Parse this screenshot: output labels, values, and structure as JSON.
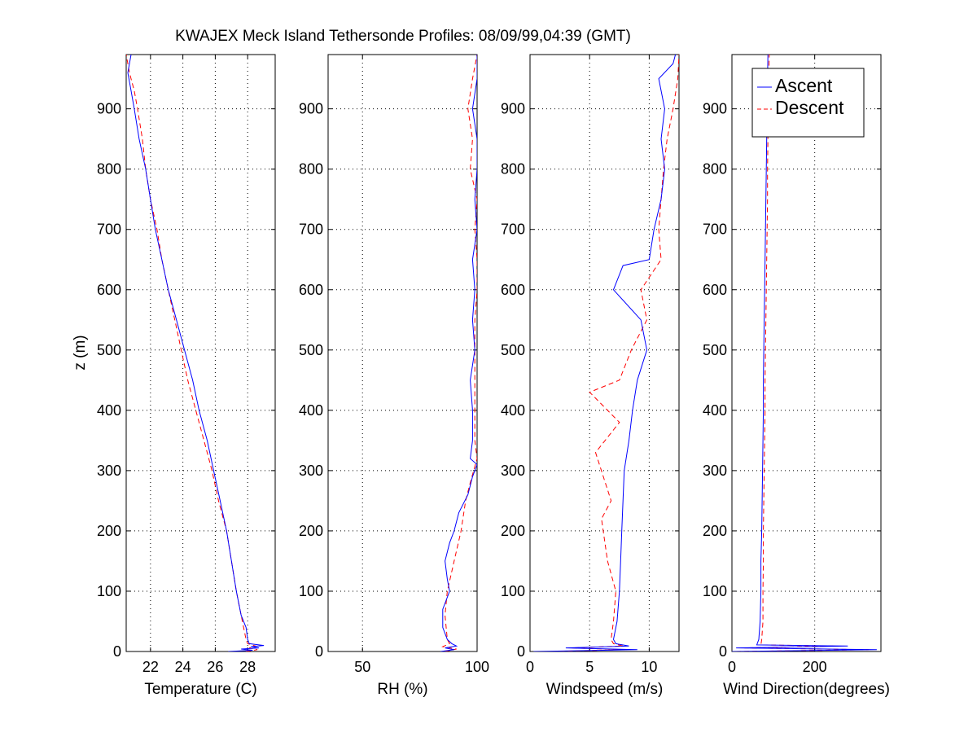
{
  "chart_data": {
    "type": "line",
    "title": "KWAJEX Meck Island Tethersonde Profiles: 08/09/99,04:39 (GMT)",
    "ylabel": "z (m)",
    "ylim": [
      0,
      990
    ],
    "yticks": [
      0,
      100,
      200,
      300,
      400,
      500,
      600,
      700,
      800,
      900
    ],
    "grid": true,
    "legend": {
      "placement": "top-right of last panel",
      "entries": [
        {
          "name": "Ascent",
          "color": "#0000ff",
          "style": "solid"
        },
        {
          "name": "Descent",
          "color": "#ff0000",
          "style": "dashed"
        }
      ]
    },
    "panels": [
      {
        "xlabel": "Temperature (C)",
        "xlim": [
          20.5,
          29.7
        ],
        "xticks": [
          22,
          24,
          26,
          28
        ],
        "series": [
          {
            "name": "Ascent",
            "color": "#0000ff",
            "style": "solid",
            "points": [
              [
                26.8,
                0
              ],
              [
                28.3,
                2
              ],
              [
                27.6,
                4
              ],
              [
                28.7,
                6
              ],
              [
                28.2,
                8
              ],
              [
                29.0,
                10
              ],
              [
                28.1,
                13
              ],
              [
                28.0,
                20
              ],
              [
                27.9,
                40
              ],
              [
                27.6,
                60
              ],
              [
                27.3,
                100
              ],
              [
                27.0,
                150
              ],
              [
                26.7,
                200
              ],
              [
                26.3,
                250
              ],
              [
                25.9,
                300
              ],
              [
                25.5,
                350
              ],
              [
                25.0,
                400
              ],
              [
                24.6,
                450
              ],
              [
                24.1,
                500
              ],
              [
                23.6,
                550
              ],
              [
                23.1,
                600
              ],
              [
                22.7,
                650
              ],
              [
                22.3,
                700
              ],
              [
                22.0,
                750
              ],
              [
                21.7,
                800
              ],
              [
                21.3,
                850
              ],
              [
                21.0,
                900
              ],
              [
                20.8,
                930
              ],
              [
                20.6,
                960
              ],
              [
                20.8,
                990
              ]
            ]
          },
          {
            "name": "Descent",
            "color": "#ff0000",
            "style": "dashed",
            "points": [
              [
                27.9,
                0
              ],
              [
                28.6,
                3
              ],
              [
                28.1,
                6
              ],
              [
                28.5,
                9
              ],
              [
                28.0,
                13
              ],
              [
                27.9,
                20
              ],
              [
                27.6,
                60
              ],
              [
                27.3,
                100
              ],
              [
                27.0,
                150
              ],
              [
                26.7,
                200
              ],
              [
                26.2,
                250
              ],
              [
                25.8,
                300
              ],
              [
                25.3,
                350
              ],
              [
                24.8,
                400
              ],
              [
                24.3,
                450
              ],
              [
                23.9,
                500
              ],
              [
                23.5,
                550
              ],
              [
                23.1,
                600
              ],
              [
                22.7,
                650
              ],
              [
                22.4,
                700
              ],
              [
                22.0,
                750
              ],
              [
                21.7,
                800
              ],
              [
                21.5,
                850
              ],
              [
                21.2,
                900
              ],
              [
                21.0,
                930
              ],
              [
                20.7,
                960
              ],
              [
                20.5,
                990
              ]
            ]
          }
        ]
      },
      {
        "xlabel": "RH (%)",
        "xlim": [
          35,
          100
        ],
        "xticks": [
          50,
          100
        ],
        "series": [
          {
            "name": "Ascent",
            "color": "#0000ff",
            "style": "solid",
            "points": [
              [
                84,
                0
              ],
              [
                90,
                3
              ],
              [
                86,
                6
              ],
              [
                91,
                9
              ],
              [
                89,
                13
              ],
              [
                87,
                20
              ],
              [
                85,
                40
              ],
              [
                85,
                70
              ],
              [
                88,
                100
              ],
              [
                87,
                120
              ],
              [
                86,
                150
              ],
              [
                88,
                180
              ],
              [
                90,
                200
              ],
              [
                92,
                230
              ],
              [
                96,
                260
              ],
              [
                98,
                290
              ],
              [
                100,
                310
              ],
              [
                97,
                320
              ],
              [
                98,
                350
              ],
              [
                98,
                400
              ],
              [
                97,
                450
              ],
              [
                99,
                500
              ],
              [
                98,
                550
              ],
              [
                99,
                600
              ],
              [
                98,
                650
              ],
              [
                100,
                700
              ],
              [
                99,
                750
              ],
              [
                100,
                800
              ],
              [
                100,
                850
              ],
              [
                98,
                900
              ],
              [
                100,
                950
              ],
              [
                100,
                990
              ]
            ]
          },
          {
            "name": "Descent",
            "color": "#ff0000",
            "style": "dashed",
            "points": [
              [
                86,
                0
              ],
              [
                91,
                4
              ],
              [
                85,
                8
              ],
              [
                88,
                13
              ],
              [
                87,
                20
              ],
              [
                86,
                60
              ],
              [
                87,
                100
              ],
              [
                90,
                150
              ],
              [
                93,
                200
              ],
              [
                95,
                250
              ],
              [
                97,
                280
              ],
              [
                100,
                320
              ],
              [
                99,
                350
              ],
              [
                99,
                400
              ],
              [
                99,
                450
              ],
              [
                99,
                500
              ],
              [
                99,
                550
              ],
              [
                100,
                600
              ],
              [
                100,
                650
              ],
              [
                99,
                700
              ],
              [
                100,
                750
              ],
              [
                97,
                800
              ],
              [
                98,
                850
              ],
              [
                96,
                900
              ],
              [
                98,
                950
              ],
              [
                100,
                990
              ]
            ]
          }
        ]
      },
      {
        "xlabel": "Windspeed (m/s)",
        "xlim": [
          0,
          12.5
        ],
        "xticks": [
          0,
          5,
          10
        ],
        "series": [
          {
            "name": "Ascent",
            "color": "#0000ff",
            "style": "solid",
            "points": [
              [
                0.3,
                0
              ],
              [
                9.0,
                3
              ],
              [
                3.0,
                6
              ],
              [
                8.3,
                9
              ],
              [
                7.2,
                13
              ],
              [
                7.0,
                20
              ],
              [
                7.3,
                50
              ],
              [
                7.5,
                100
              ],
              [
                7.6,
                150
              ],
              [
                7.7,
                200
              ],
              [
                7.8,
                250
              ],
              [
                7.9,
                300
              ],
              [
                8.3,
                350
              ],
              [
                8.6,
                400
              ],
              [
                9.0,
                450
              ],
              [
                9.8,
                500
              ],
              [
                9.3,
                550
              ],
              [
                7.0,
                600
              ],
              [
                7.8,
                640
              ],
              [
                10.0,
                650
              ],
              [
                10.4,
                700
              ],
              [
                11.0,
                750
              ],
              [
                11.3,
                800
              ],
              [
                11.0,
                850
              ],
              [
                11.3,
                900
              ],
              [
                10.8,
                950
              ],
              [
                12.0,
                975
              ],
              [
                12.2,
                990
              ]
            ]
          },
          {
            "name": "Descent",
            "color": "#ff0000",
            "style": "dashed",
            "points": [
              [
                1.8,
                0
              ],
              [
                8.0,
                3
              ],
              [
                3.5,
                6
              ],
              [
                7.8,
                9
              ],
              [
                7.0,
                13
              ],
              [
                6.8,
                20
              ],
              [
                7.0,
                50
              ],
              [
                7.2,
                100
              ],
              [
                6.5,
                150
              ],
              [
                6.0,
                220
              ],
              [
                6.8,
                250
              ],
              [
                5.5,
                330
              ],
              [
                7.5,
                380
              ],
              [
                5.0,
                430
              ],
              [
                7.5,
                450
              ],
              [
                8.5,
                500
              ],
              [
                9.8,
                550
              ],
              [
                9.3,
                600
              ],
              [
                11.0,
                650
              ],
              [
                10.8,
                700
              ],
              [
                11.0,
                750
              ],
              [
                11.2,
                800
              ],
              [
                11.5,
                850
              ],
              [
                12.0,
                900
              ],
              [
                12.4,
                950
              ],
              [
                12.5,
                990
              ]
            ]
          }
        ]
      },
      {
        "xlabel": "Wind Direction(degrees)",
        "xlim": [
          0,
          360
        ],
        "xticks": [
          0,
          200
        ],
        "series": [
          {
            "name": "Ascent",
            "color": "#0000ff",
            "style": "solid",
            "points": [
              [
                0,
                0
              ],
              [
                350,
                3
              ],
              [
                10,
                6
              ],
              [
                280,
                9
              ],
              [
                60,
                11
              ],
              [
                65,
                20
              ],
              [
                68,
                50
              ],
              [
                70,
                100
              ],
              [
                70,
                150
              ],
              [
                72,
                200
              ],
              [
                73,
                250
              ],
              [
                74,
                300
              ],
              [
                75,
                350
              ],
              [
                76,
                400
              ],
              [
                76,
                450
              ],
              [
                77,
                500
              ],
              [
                78,
                550
              ],
              [
                79,
                600
              ],
              [
                80,
                650
              ],
              [
                81,
                700
              ],
              [
                82,
                750
              ],
              [
                83,
                800
              ],
              [
                84,
                850
              ],
              [
                85,
                900
              ],
              [
                86,
                950
              ],
              [
                87,
                990
              ]
            ]
          },
          {
            "name": "Descent",
            "color": "#ff0000",
            "style": "dashed",
            "points": [
              [
                10,
                0
              ],
              [
                330,
                3
              ],
              [
                30,
                6
              ],
              [
                250,
                9
              ],
              [
                70,
                11
              ],
              [
                72,
                20
              ],
              [
                75,
                50
              ],
              [
                75,
                100
              ],
              [
                76,
                150
              ],
              [
                76,
                200
              ],
              [
                77,
                250
              ],
              [
                78,
                300
              ],
              [
                79,
                350
              ],
              [
                80,
                400
              ],
              [
                80,
                450
              ],
              [
                81,
                500
              ],
              [
                82,
                550
              ],
              [
                83,
                600
              ],
              [
                84,
                650
              ],
              [
                85,
                700
              ],
              [
                86,
                750
              ],
              [
                86,
                800
              ],
              [
                87,
                850
              ],
              [
                88,
                900
              ],
              [
                89,
                950
              ],
              [
                90,
                990
              ]
            ]
          }
        ]
      }
    ]
  }
}
